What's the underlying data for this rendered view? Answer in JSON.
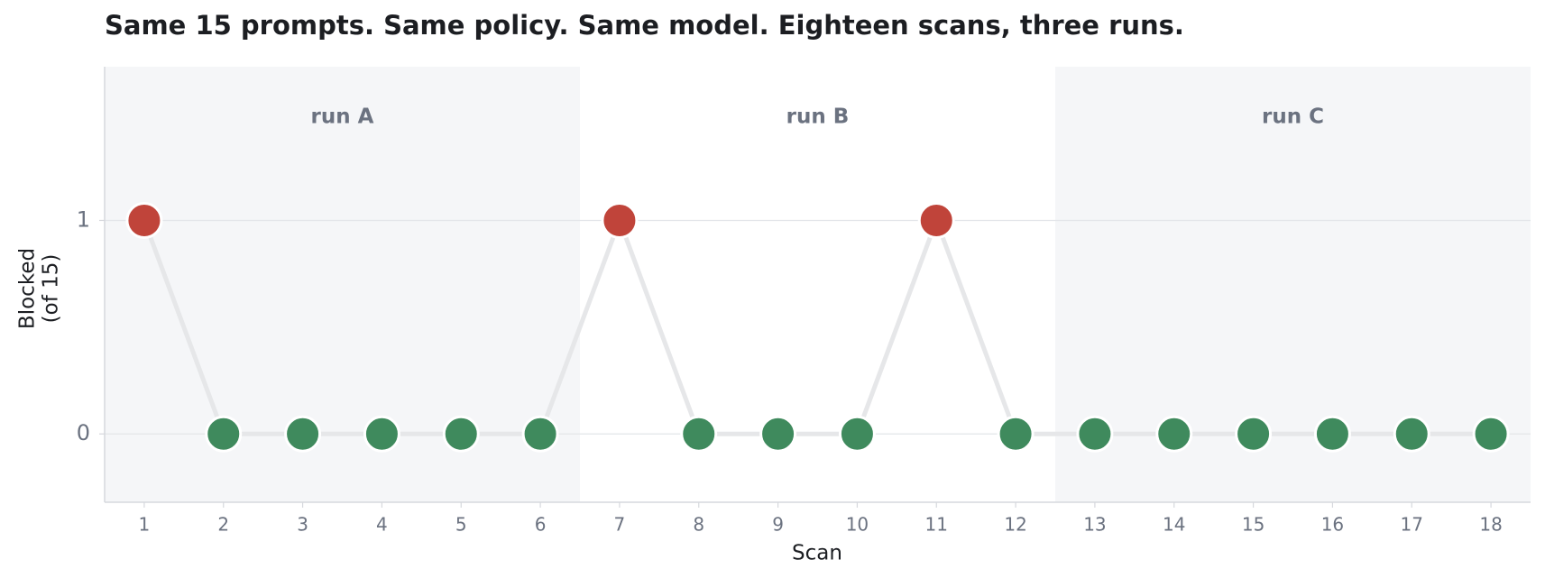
{
  "chart_data": {
    "type": "line",
    "title": "Same 15 prompts. Same policy. Same model. Eighteen scans, three runs.",
    "xlabel": "Scan",
    "ylabel": [
      "Blocked",
      "(of 15)"
    ],
    "x": [
      1,
      2,
      3,
      4,
      5,
      6,
      7,
      8,
      9,
      10,
      11,
      12,
      13,
      14,
      15,
      16,
      17,
      18
    ],
    "values": [
      1,
      0,
      0,
      0,
      0,
      0,
      1,
      0,
      0,
      0,
      1,
      0,
      0,
      0,
      0,
      0,
      0,
      0
    ],
    "colors": [
      "#c0443a",
      "#3f8a5d",
      "#3f8a5d",
      "#3f8a5d",
      "#3f8a5d",
      "#3f8a5d",
      "#c0443a",
      "#3f8a5d",
      "#3f8a5d",
      "#3f8a5d",
      "#c0443a",
      "#3f8a5d",
      "#3f8a5d",
      "#3f8a5d",
      "#3f8a5d",
      "#3f8a5d",
      "#3f8a5d",
      "#3f8a5d"
    ],
    "line_color": "#e6e7e9",
    "runs": [
      {
        "label": "run A",
        "start": 1,
        "end": 6,
        "shaded": true
      },
      {
        "label": "run B",
        "start": 7,
        "end": 12,
        "shaded": false
      },
      {
        "label": "run C",
        "start": 13,
        "end": 18,
        "shaded": true
      }
    ],
    "xlim": [
      0.5,
      18.5
    ],
    "ylim": [
      -0.32,
      1.72
    ],
    "xticks": [
      1,
      2,
      3,
      4,
      5,
      6,
      7,
      8,
      9,
      10,
      11,
      12,
      13,
      14,
      15,
      16,
      17,
      18
    ],
    "yticks": [
      0,
      1
    ],
    "grid": true
  }
}
